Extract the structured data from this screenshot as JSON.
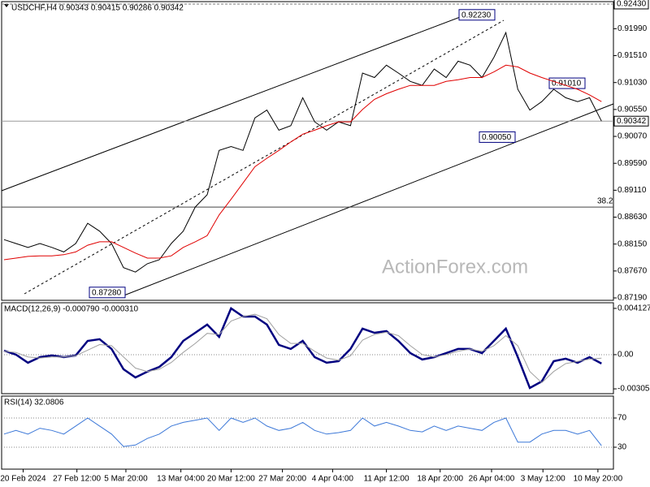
{
  "chart_data": [
    {
      "type": "line",
      "title": "USDCHF,H4 0.90343 0.90415 0.90286 0.90342",
      "watermark": "ActionForex.com",
      "x": [
        0,
        1,
        2,
        3,
        4,
        5,
        6,
        7,
        8,
        9,
        10,
        11,
        12,
        13,
        14,
        15,
        16,
        17,
        18,
        19,
        20,
        21,
        22,
        23,
        24,
        25,
        26,
        27,
        28,
        29,
        30,
        31,
        32,
        33,
        34,
        35,
        36,
        37,
        38,
        39,
        40,
        41,
        42,
        43,
        44,
        45,
        46,
        47,
        48,
        49,
        50
      ],
      "xlim": [
        -0.2,
        51.0
      ],
      "series": [
        {
          "color": "#000000",
          "values": [
            0.8823,
            0.8816,
            0.8809,
            0.8816,
            0.8809,
            0.8801,
            0.8816,
            0.8852,
            0.8838,
            0.8816,
            0.8773,
            0.8765,
            0.878,
            0.8787,
            0.8816,
            0.8838,
            0.8881,
            0.8903,
            0.8982,
            0.8989,
            0.8982,
            0.904,
            0.9054,
            0.9018,
            0.9026,
            0.9076,
            0.9033,
            0.9018,
            0.9033,
            0.9026,
            0.912,
            0.9112,
            0.9134,
            0.912,
            0.9105,
            0.9098,
            0.9127,
            0.9112,
            0.9141,
            0.9134,
            0.9112,
            0.9148,
            0.9192,
            0.9091,
            0.9054,
            0.9069,
            0.9091,
            0.9076,
            0.9069,
            0.9076,
            0.90342
          ]
        },
        {
          "color": "#e00000",
          "values": [
            0.8787,
            0.879,
            0.8793,
            0.8794,
            0.8794,
            0.8796,
            0.8801,
            0.8813,
            0.8819,
            0.8819,
            0.8809,
            0.8799,
            0.879,
            0.879,
            0.8794,
            0.8809,
            0.8819,
            0.883,
            0.8867,
            0.8895,
            0.8924,
            0.8953,
            0.8968,
            0.8982,
            0.8997,
            0.9011,
            0.9018,
            0.9026,
            0.9033,
            0.9033,
            0.9055,
            0.9073,
            0.9083,
            0.9091,
            0.9098,
            0.9098,
            0.9098,
            0.9105,
            0.9108,
            0.9112,
            0.9112,
            0.9122,
            0.9134,
            0.9131,
            0.912,
            0.9112,
            0.9105,
            0.9098,
            0.9091,
            0.9081,
            0.9069
          ]
        }
      ],
      "ylim": [
        0.87147,
        0.92473
      ],
      "yticks": [
        {
          "value": 0.9199,
          "label": "0.91990"
        },
        {
          "value": 0.9151,
          "label": "0.91510"
        },
        {
          "value": 0.9103,
          "label": "0.91030"
        },
        {
          "value": 0.9055,
          "label": "0.90550"
        },
        {
          "value": 0.9007,
          "label": "0.90070"
        },
        {
          "value": 0.8959,
          "label": "0.89590"
        },
        {
          "value": 0.8911,
          "label": "0.89110"
        },
        {
          "value": 0.8863,
          "label": "0.88630"
        },
        {
          "value": 0.8815,
          "label": "0.88150"
        },
        {
          "value": 0.8767,
          "label": "0.87670"
        },
        {
          "value": 0.8719,
          "label": "0.87190"
        }
      ],
      "reference_lines": [
        {
          "value": 0.9243,
          "label": "0.92430"
        },
        {
          "value": 0.90342,
          "label": "0.90342"
        },
        {
          "value": 0.8881,
          "label": "38.2"
        }
      ],
      "annotations": [
        {
          "value": 0.9223,
          "label": "0.92230"
        },
        {
          "value": 0.9101,
          "label": "0.91010"
        },
        {
          "value": 0.9005,
          "label": "0.90050"
        },
        {
          "value": 0.8728,
          "label": "0.87280"
        }
      ]
    },
    {
      "type": "line",
      "title": "MACD(12,26,9) -0.000790 -0.000310",
      "x": [
        0,
        1,
        2,
        3,
        4,
        5,
        6,
        7,
        8,
        9,
        10,
        11,
        12,
        13,
        14,
        15,
        16,
        17,
        18,
        19,
        20,
        21,
        22,
        23,
        24,
        25,
        26,
        27,
        28,
        29,
        30,
        31,
        32,
        33,
        34,
        35,
        36,
        37,
        38,
        39,
        40,
        41,
        42,
        43,
        44,
        45,
        46,
        47,
        48,
        49,
        50
      ],
      "xlim": [
        -0.2,
        51.0
      ],
      "series": [
        {
          "color": "#000080",
          "values": [
            0.00036,
            0,
            -0.00072,
            -0.00022,
            -7e-05,
            -0.00022,
            -7e-05,
            0.00123,
            0.00138,
            0.00051,
            -0.0013,
            -0.00203,
            -0.00152,
            -0.00109,
            -0.00022,
            0.00123,
            0.00195,
            0.00268,
            0.00159,
            0.00413,
            0.0034,
            0.0034,
            0.00268,
            0.00087,
            0.00051,
            0.00123,
            -0.00022,
            -0.00072,
            -0.00058,
            0.00051,
            0.00232,
            0.00195,
            0.0021,
            0.00123,
            0.00014,
            -0.00043,
            -0.00022,
            0.00014,
            0.00051,
            0.00051,
            0.00014,
            0.00123,
            0.00232,
            -0.00022,
            -0.00297,
            -0.00239,
            -0.00058,
            -0.00036,
            -0.00072,
            -0.00022,
            -0.00079
          ]
        },
        {
          "color": "#a0a0a0",
          "values": [
            0.0003,
            0.0002,
            -0.0002,
            -0.0003,
            -0.0002,
            -0.0002,
            -0.0001,
            0.0004,
            0.0009,
            0.0008,
            -0.0002,
            -0.0012,
            -0.0015,
            -0.0013,
            -0.0007,
            0.0002,
            0.001,
            0.0019,
            0.0018,
            0.003,
            0.0034,
            0.0036,
            0.0032,
            0.0018,
            0.001,
            0.001,
            0.0003,
            -0.0003,
            -0.0005,
            -0.0001,
            0.0013,
            0.0018,
            0.002,
            0.0017,
            0.0008,
            0,
            -0.0002,
            0,
            0.0003,
            0.0005,
            0.0003,
            0.0008,
            0.0017,
            0.0008,
            -0.0015,
            -0.0025,
            -0.0015,
            -0.0008,
            -0.0006,
            -0.0004,
            -0.00031
          ]
        }
      ],
      "ylim": [
        -0.00348,
        0.00463
      ],
      "yticks": [
        0.004127,
        {
          "value": 0,
          "label": "0.00"
        },
        -0.003051
      ]
    },
    {
      "type": "line",
      "title": "RSI(14) 32.0806",
      "x": [
        0,
        1,
        2,
        3,
        4,
        5,
        6,
        7,
        8,
        9,
        10,
        11,
        12,
        13,
        14,
        15,
        16,
        17,
        18,
        19,
        20,
        21,
        22,
        23,
        24,
        25,
        26,
        27,
        28,
        29,
        30,
        31,
        32,
        33,
        34,
        35,
        36,
        37,
        38,
        39,
        40,
        41,
        42,
        43,
        44,
        45,
        46,
        47,
        48,
        49,
        50
      ],
      "xlim": [
        -0.2,
        51.0
      ],
      "series": [
        {
          "color": "#3c78d8",
          "values": [
            48,
            53,
            48,
            56,
            53,
            48,
            59,
            70,
            59,
            48,
            31,
            33,
            42,
            48,
            59,
            64,
            67,
            70,
            53,
            70,
            64,
            70,
            59,
            53,
            56,
            64,
            53,
            48,
            50,
            53,
            70,
            59,
            64,
            59,
            53,
            51,
            59,
            53,
            59,
            56,
            53,
            64,
            70,
            37,
            37,
            48,
            53,
            53,
            48,
            53,
            32.0806
          ]
        }
      ],
      "ylim": [
        0,
        100
      ],
      "yticks": [
        70,
        30
      ],
      "grid": true,
      "xticks": [
        {
          "value": 1.6,
          "label": "20 Feb 2024"
        },
        {
          "value": 6.1,
          "label": "27 Feb 12:00"
        },
        {
          "value": 10.2,
          "label": "5 Mar 20:00"
        },
        {
          "value": 14.8,
          "label": "13 Mar 04:00"
        },
        {
          "value": 19.0,
          "label": "20 Mar 12:00"
        },
        {
          "value": 23.3,
          "label": "27 Mar 20:00"
        },
        {
          "value": 27.5,
          "label": "4 Apr 04:00"
        },
        {
          "value": 32.0,
          "label": "11 Apr 12:00"
        },
        {
          "value": 36.5,
          "label": "18 Apr 20:00"
        },
        {
          "value": 40.8,
          "label": "26 Apr 04:00"
        },
        {
          "value": 45.1,
          "label": "3 May 12:00"
        },
        {
          "value": 49.7,
          "label": "10 May 20:00"
        }
      ]
    }
  ]
}
